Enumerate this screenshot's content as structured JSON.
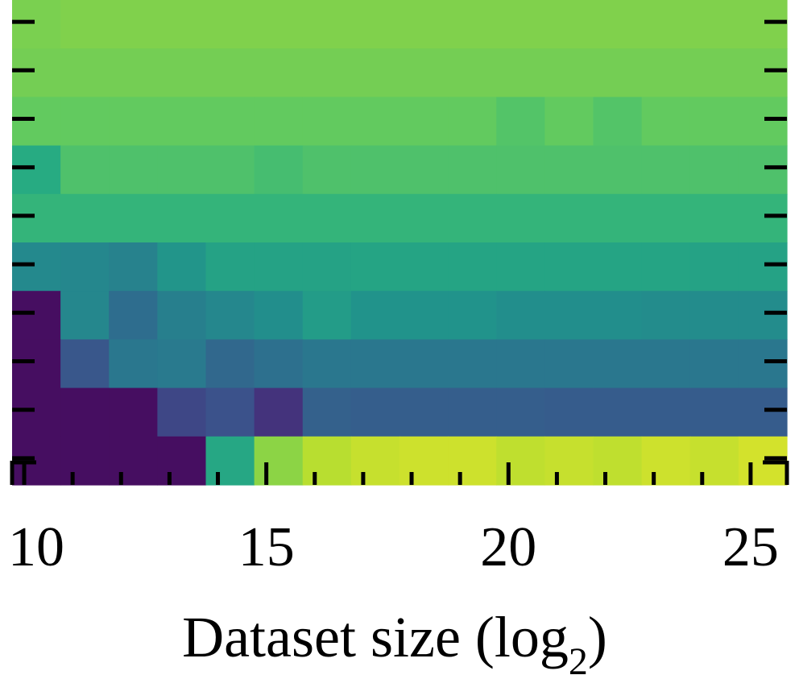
{
  "chart_data": {
    "type": "heatmap",
    "title": "",
    "xlabel_text": "Dataset size (log",
    "xlabel_subscript": "2",
    "xlabel_close": ")",
    "ylabel": "",
    "x": [
      10,
      11,
      12,
      13,
      14,
      15,
      16,
      17,
      18,
      19,
      20,
      21,
      22,
      23,
      24,
      25
    ],
    "x_tick_labels": [
      "10",
      "15",
      "20",
      "25"
    ],
    "x_tick_label_values": [
      10,
      15,
      20,
      25
    ],
    "xlim": [
      9.75,
      25.75
    ],
    "n_rows": 10,
    "colormap": "viridis",
    "values": [
      [
        0.8,
        0.81,
        0.81,
        0.81,
        0.81,
        0.81,
        0.81,
        0.81,
        0.81,
        0.81,
        0.81,
        0.81,
        0.81,
        0.81,
        0.81,
        0.81
      ],
      [
        0.79,
        0.79,
        0.79,
        0.79,
        0.79,
        0.79,
        0.79,
        0.79,
        0.79,
        0.79,
        0.79,
        0.79,
        0.79,
        0.79,
        0.79,
        0.79
      ],
      [
        0.76,
        0.76,
        0.76,
        0.76,
        0.76,
        0.76,
        0.76,
        0.76,
        0.76,
        0.76,
        0.73,
        0.76,
        0.73,
        0.76,
        0.76,
        0.76
      ],
      [
        0.62,
        0.72,
        0.72,
        0.72,
        0.72,
        0.7,
        0.72,
        0.72,
        0.72,
        0.72,
        0.72,
        0.72,
        0.72,
        0.72,
        0.72,
        0.72
      ],
      [
        0.66,
        0.66,
        0.66,
        0.66,
        0.66,
        0.66,
        0.66,
        0.66,
        0.66,
        0.66,
        0.66,
        0.66,
        0.66,
        0.66,
        0.66,
        0.66
      ],
      [
        0.47,
        0.46,
        0.44,
        0.52,
        0.58,
        0.58,
        0.58,
        0.59,
        0.59,
        0.59,
        0.59,
        0.59,
        0.59,
        0.59,
        0.58,
        0.58
      ],
      [
        0.05,
        0.46,
        0.36,
        0.43,
        0.46,
        0.49,
        0.55,
        0.51,
        0.51,
        0.51,
        0.49,
        0.49,
        0.49,
        0.48,
        0.48,
        0.48
      ],
      [
        0.05,
        0.27,
        0.4,
        0.41,
        0.34,
        0.37,
        0.4,
        0.4,
        0.4,
        0.4,
        0.4,
        0.4,
        0.4,
        0.4,
        0.4,
        0.4
      ],
      [
        0.05,
        0.05,
        0.05,
        0.22,
        0.25,
        0.17,
        0.31,
        0.3,
        0.3,
        0.3,
        0.3,
        0.29,
        0.29,
        0.29,
        0.29,
        0.29
      ],
      [
        0.05,
        0.05,
        0.05,
        0.05,
        0.6,
        0.83,
        0.9,
        0.92,
        0.93,
        0.93,
        0.91,
        0.92,
        0.91,
        0.93,
        0.92,
        0.94
      ]
    ]
  }
}
